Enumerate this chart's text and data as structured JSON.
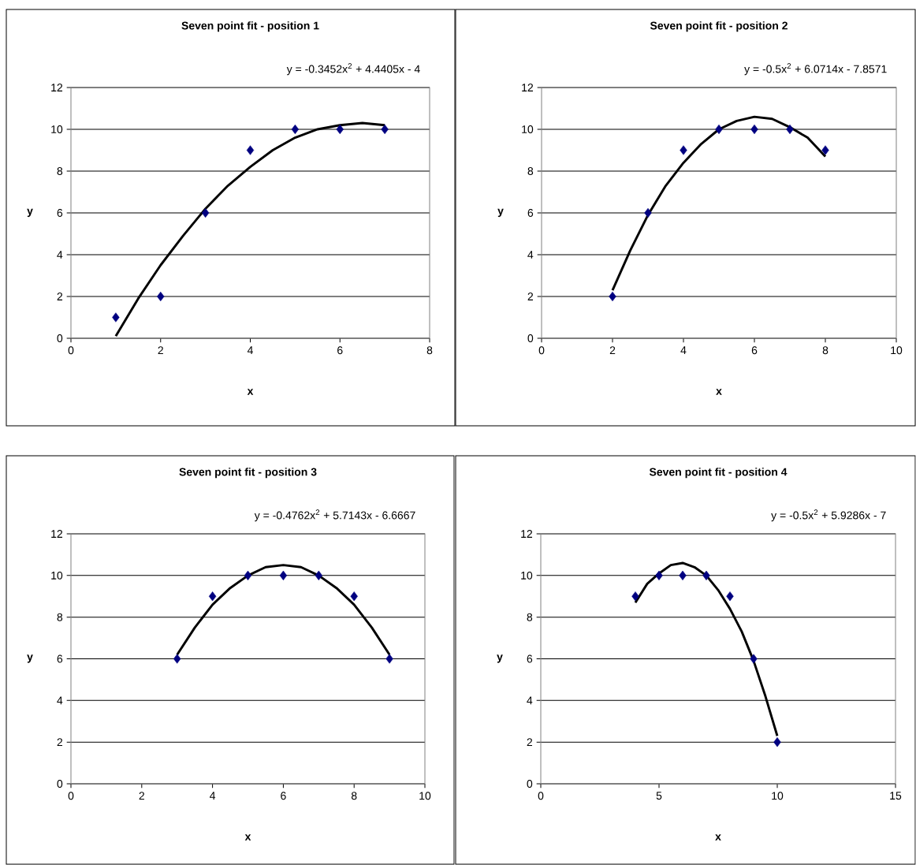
{
  "chart_data": [
    {
      "type": "scatter",
      "title": "Seven point fit - position 1",
      "annotations": [
        "y = -0.3452x$^{2}$ + 4.4405x - 4"
      ],
      "xlabel": "x",
      "ylabel": "y",
      "xlim": [
        0,
        8
      ],
      "ylim": [
        0,
        12
      ],
      "xticks": [
        0,
        2,
        4,
        6,
        8
      ],
      "yticks": [
        0,
        2,
        4,
        6,
        8,
        10,
        12
      ],
      "grid": "y",
      "series": [
        {
          "marker": "diamond",
          "color": "#000080",
          "x": [
            1,
            2,
            3,
            4,
            5,
            6,
            7
          ],
          "values": [
            1,
            2,
            6,
            9,
            10,
            10,
            10
          ]
        },
        {
          "type": "line",
          "marker": "none",
          "color": "#000000",
          "x": [
            1,
            1.5,
            2,
            2.5,
            3,
            3.5,
            4,
            4.5,
            5,
            5.5,
            6,
            6.5,
            7
          ],
          "values": [
            0.1,
            1.9,
            3.5,
            4.9,
            6.2,
            7.3,
            8.2,
            9.0,
            9.6,
            10.0,
            10.2,
            10.3,
            10.2
          ]
        }
      ]
    },
    {
      "type": "scatter",
      "title": "Seven point fit - position 2",
      "annotations": [
        "y = -0.5x$^{2}$ + 6.0714x - 7.8571"
      ],
      "xlabel": "x",
      "ylabel": "y",
      "xlim": [
        0,
        10
      ],
      "ylim": [
        0,
        12
      ],
      "xticks": [
        0,
        2,
        4,
        6,
        8,
        10
      ],
      "yticks": [
        0,
        2,
        4,
        6,
        8,
        10,
        12
      ],
      "grid": "y",
      "series": [
        {
          "marker": "diamond",
          "color": "#000080",
          "x": [
            2,
            3,
            4,
            5,
            6,
            7,
            8
          ],
          "values": [
            2,
            6,
            9,
            10,
            10,
            10,
            9
          ]
        },
        {
          "type": "line",
          "marker": "none",
          "color": "#000000",
          "x": [
            2,
            2.5,
            3,
            3.5,
            4,
            4.5,
            5,
            5.5,
            6,
            6.5,
            7,
            7.5,
            8
          ],
          "values": [
            2.3,
            4.2,
            5.9,
            7.3,
            8.4,
            9.3,
            10.0,
            10.4,
            10.6,
            10.5,
            10.1,
            9.6,
            8.7
          ]
        }
      ]
    },
    {
      "type": "scatter",
      "title": "Seven point fit - position 3",
      "annotations": [
        "y = -0.4762x$^{2}$ + 5.7143x - 6.6667"
      ],
      "xlabel": "x",
      "ylabel": "y",
      "xlim": [
        0,
        10
      ],
      "ylim": [
        0,
        12
      ],
      "xticks": [
        0,
        2,
        4,
        6,
        8,
        10
      ],
      "yticks": [
        0,
        2,
        4,
        6,
        8,
        10,
        12
      ],
      "grid": "y",
      "series": [
        {
          "marker": "diamond",
          "color": "#000080",
          "x": [
            3,
            4,
            5,
            6,
            7,
            8,
            9
          ],
          "values": [
            6,
            9,
            10,
            10,
            10,
            9,
            6
          ]
        },
        {
          "type": "line",
          "marker": "none",
          "color": "#000000",
          "x": [
            3,
            3.5,
            4,
            4.5,
            5,
            5.5,
            6,
            6.5,
            7,
            7.5,
            8,
            8.5,
            9
          ],
          "values": [
            6.2,
            7.5,
            8.6,
            9.4,
            10.0,
            10.4,
            10.5,
            10.4,
            10.0,
            9.4,
            8.6,
            7.5,
            6.2
          ]
        }
      ]
    },
    {
      "type": "scatter",
      "title": "Seven point fit - position 4",
      "annotations": [
        "y = -0.5x$^{2}$ + 5.9286x - 7"
      ],
      "xlabel": "x",
      "ylabel": "y",
      "xlim": [
        0,
        15
      ],
      "ylim": [
        0,
        12
      ],
      "xticks": [
        0,
        5,
        10,
        15
      ],
      "yticks": [
        0,
        2,
        4,
        6,
        8,
        10,
        12
      ],
      "grid": "y",
      "series": [
        {
          "marker": "diamond",
          "color": "#000080",
          "x": [
            4,
            5,
            6,
            7,
            8,
            9,
            10
          ],
          "values": [
            9,
            10,
            10,
            10,
            9,
            6,
            2
          ]
        },
        {
          "type": "line",
          "marker": "none",
          "color": "#000000",
          "x": [
            4,
            4.5,
            5,
            5.5,
            6,
            6.5,
            7,
            7.5,
            8,
            8.5,
            9,
            9.5,
            10
          ],
          "values": [
            8.7,
            9.6,
            10.1,
            10.5,
            10.6,
            10.4,
            10.0,
            9.3,
            8.4,
            7.3,
            5.9,
            4.2,
            2.3
          ]
        }
      ]
    }
  ]
}
